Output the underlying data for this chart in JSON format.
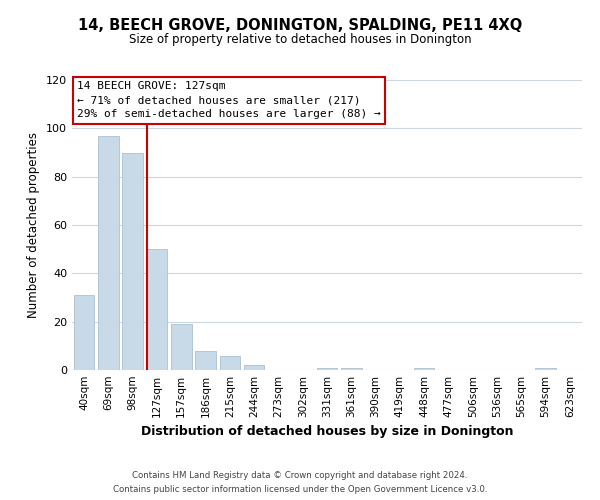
{
  "title": "14, BEECH GROVE, DONINGTON, SPALDING, PE11 4XQ",
  "subtitle": "Size of property relative to detached houses in Donington",
  "xlabel": "Distribution of detached houses by size in Donington",
  "ylabel": "Number of detached properties",
  "bar_labels": [
    "40sqm",
    "69sqm",
    "98sqm",
    "127sqm",
    "157sqm",
    "186sqm",
    "215sqm",
    "244sqm",
    "273sqm",
    "302sqm",
    "331sqm",
    "361sqm",
    "390sqm",
    "419sqm",
    "448sqm",
    "477sqm",
    "506sqm",
    "536sqm",
    "565sqm",
    "594sqm",
    "623sqm"
  ],
  "bar_values": [
    31,
    97,
    90,
    50,
    19,
    8,
    6,
    2,
    0,
    0,
    1,
    1,
    0,
    0,
    1,
    0,
    0,
    0,
    0,
    1,
    0
  ],
  "bar_color": "#c8d9e8",
  "bar_edge_color": "#a0b8cc",
  "highlight_index": 3,
  "highlight_line_color": "#cc0000",
  "ylim": [
    0,
    120
  ],
  "yticks": [
    0,
    20,
    40,
    60,
    80,
    100,
    120
  ],
  "annotation_title": "14 BEECH GROVE: 127sqm",
  "annotation_line1": "← 71% of detached houses are smaller (217)",
  "annotation_line2": "29% of semi-detached houses are larger (88) →",
  "footer_line1": "Contains HM Land Registry data © Crown copyright and database right 2024.",
  "footer_line2": "Contains public sector information licensed under the Open Government Licence v3.0.",
  "background_color": "#ffffff",
  "grid_color": "#cdd8e3"
}
